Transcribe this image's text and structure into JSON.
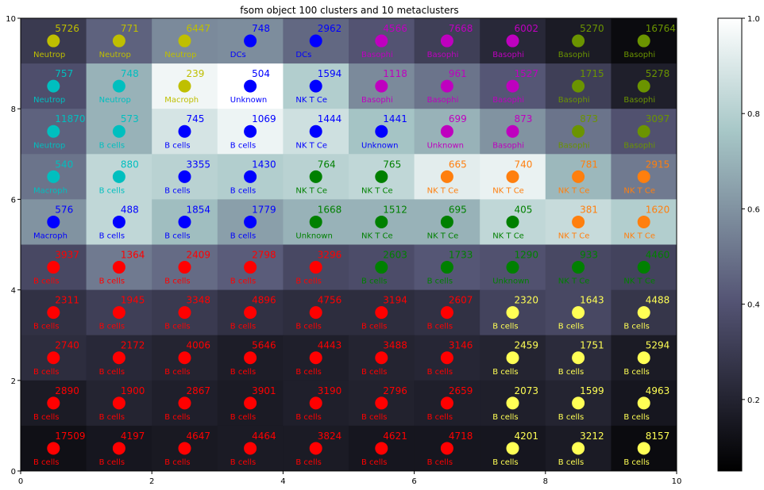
{
  "chart_data": {
    "type": "heatmap",
    "title": "fsom object 100 clusters and 10 metaclusters",
    "xlim": [
      0,
      10
    ],
    "ylim": [
      0,
      10
    ],
    "xticks": [
      "0",
      "2",
      "4",
      "6",
      "8",
      "10"
    ],
    "yticks": [
      "0",
      "2",
      "4",
      "6",
      "8",
      "10"
    ],
    "colorbar": {
      "range": [
        0.05,
        1.0
      ],
      "ticks": [
        "0.2",
        "0.4",
        "0.6",
        "0.8",
        "1.0"
      ],
      "colormap": "bone"
    },
    "metacluster_colors": {
      "red": "#ff0000",
      "green": "#008000",
      "orange": "#ff7f0e",
      "blue": "#0000ff",
      "magenta": "#bf00bf",
      "cyan": "#00bfbf",
      "olive": "#6b9400",
      "yellow": "#bfbf00",
      "lightyellow": "#ffff55"
    },
    "cells": [
      [
        {
          "count": "5726",
          "label": "Neutrop",
          "color": "yellow",
          "level": 0.26
        },
        {
          "count": "771",
          "label": "Neutrop",
          "color": "yellow",
          "level": 0.42
        },
        {
          "count": "6447",
          "label": "Neutrop",
          "color": "yellow",
          "level": 0.55
        },
        {
          "count": "748",
          "label": "DCs",
          "color": "blue",
          "level": 0.56
        },
        {
          "count": "2962",
          "label": "DCs",
          "color": "blue",
          "level": 0.44
        },
        {
          "count": "4566",
          "label": "Basophi",
          "color": "magenta",
          "level": 0.37
        },
        {
          "count": "7668",
          "label": "Basophi",
          "color": "magenta",
          "level": 0.28
        },
        {
          "count": "6002",
          "label": "Basophi",
          "color": "magenta",
          "level": 0.18
        },
        {
          "count": "5270",
          "label": "Basophi",
          "color": "olive",
          "level": 0.12
        },
        {
          "count": "16764",
          "label": "Basophi",
          "color": "olive",
          "level": 0.05
        }
      ],
      [
        {
          "count": "757",
          "label": "Neutrop",
          "color": "cyan",
          "level": 0.35
        },
        {
          "count": "748",
          "label": "Neutrop",
          "color": "cyan",
          "level": 0.68
        },
        {
          "count": "239",
          "label": "Macroph",
          "color": "yellow",
          "level": 0.96
        },
        {
          "count": "504",
          "label": "Unknown",
          "color": "blue",
          "level": 1.0
        },
        {
          "count": "1594",
          "label": "NK T Ce",
          "color": "blue",
          "level": 0.78
        },
        {
          "count": "1118",
          "label": "Basophi",
          "color": "magenta",
          "level": 0.55
        },
        {
          "count": "961",
          "label": "Basophi",
          "color": "magenta",
          "level": 0.48
        },
        {
          "count": "1527",
          "label": "Basophi",
          "color": "magenta",
          "level": 0.38
        },
        {
          "count": "1715",
          "label": "Basophi",
          "color": "olive",
          "level": 0.28
        },
        {
          "count": "5278",
          "label": "Basophi",
          "color": "olive",
          "level": 0.14
        }
      ],
      [
        {
          "count": "11870",
          "label": "Neutrop",
          "color": "cyan",
          "level": 0.42
        },
        {
          "count": "573",
          "label": "B cells",
          "color": "cyan",
          "level": 0.68
        },
        {
          "count": "745",
          "label": "B cells",
          "color": "blue",
          "level": 0.88
        },
        {
          "count": "1069",
          "label": "B cells",
          "color": "blue",
          "level": 0.95
        },
        {
          "count": "1444",
          "label": "NK T Ce",
          "color": "blue",
          "level": 0.86
        },
        {
          "count": "1441",
          "label": "Unknown",
          "color": "blue",
          "level": 0.74
        },
        {
          "count": "699",
          "label": "Unknown",
          "color": "magenta",
          "level": 0.68
        },
        {
          "count": "873",
          "label": "Basophi",
          "color": "magenta",
          "level": 0.58
        },
        {
          "count": "873",
          "label": "Basophi",
          "color": "olive",
          "level": 0.48
        },
        {
          "count": "3097",
          "label": "Basophi",
          "color": "olive",
          "level": 0.36
        }
      ],
      [
        {
          "count": "540",
          "label": "Macroph",
          "color": "cyan",
          "level": 0.48
        },
        {
          "count": "880",
          "label": "B cells",
          "color": "cyan",
          "level": 0.82
        },
        {
          "count": "3355",
          "label": "B cells",
          "color": "blue",
          "level": 0.8
        },
        {
          "count": "1430",
          "label": "B cells",
          "color": "blue",
          "level": 0.78
        },
        {
          "count": "764",
          "label": "NK T Ce",
          "color": "green",
          "level": 0.8
        },
        {
          "count": "765",
          "label": "NK T Ce",
          "color": "green",
          "level": 0.82
        },
        {
          "count": "665",
          "label": "NK T Ce",
          "color": "orange",
          "level": 0.92
        },
        {
          "count": "740",
          "label": "NK T Ce",
          "color": "orange",
          "level": 0.94
        },
        {
          "count": "781",
          "label": "NK T Ce",
          "color": "orange",
          "level": 0.7
        },
        {
          "count": "2915",
          "label": "NK T Ce",
          "color": "orange",
          "level": 0.5
        }
      ],
      [
        {
          "count": "576",
          "label": "Macroph",
          "color": "blue",
          "level": 0.58
        },
        {
          "count": "488",
          "label": "B cells",
          "color": "blue",
          "level": 0.82
        },
        {
          "count": "1854",
          "label": "B cells",
          "color": "blue",
          "level": 0.72
        },
        {
          "count": "1779",
          "label": "B cells",
          "color": "blue",
          "level": 0.62
        },
        {
          "count": "1668",
          "label": "Unknown",
          "color": "green",
          "level": 0.68
        },
        {
          "count": "1512",
          "label": "NK T Ce",
          "color": "green",
          "level": 0.68
        },
        {
          "count": "695",
          "label": "NK T Ce",
          "color": "green",
          "level": 0.68
        },
        {
          "count": "405",
          "label": "NK T Ce",
          "color": "green",
          "level": 0.82
        },
        {
          "count": "381",
          "label": "NK T Ce",
          "color": "orange",
          "level": 0.84
        },
        {
          "count": "1620",
          "label": "NK T Ce",
          "color": "orange",
          "level": 0.78
        }
      ],
      [
        {
          "count": "3937",
          "label": "B cells",
          "color": "red",
          "level": 0.32
        },
        {
          "count": "1364",
          "label": "B cells",
          "color": "red",
          "level": 0.5
        },
        {
          "count": "2409",
          "label": "B cells",
          "color": "red",
          "level": 0.45
        },
        {
          "count": "2798",
          "label": "B cells",
          "color": "red",
          "level": 0.4
        },
        {
          "count": "3296",
          "label": "B cells",
          "color": "red",
          "level": 0.32
        },
        {
          "count": "2603",
          "label": "B cells",
          "color": "green",
          "level": 0.34
        },
        {
          "count": "1733",
          "label": "B cells",
          "color": "green",
          "level": 0.38
        },
        {
          "count": "1290",
          "label": "Unknown",
          "color": "green",
          "level": 0.36
        },
        {
          "count": "933",
          "label": "NK T Ce",
          "color": "green",
          "level": 0.32
        },
        {
          "count": "4460",
          "label": "NK T Ce",
          "color": "green",
          "level": 0.3
        }
      ],
      [
        {
          "count": "2311",
          "label": "B cells",
          "color": "red",
          "level": 0.22
        },
        {
          "count": "1945",
          "label": "B cells",
          "color": "red",
          "level": 0.28
        },
        {
          "count": "3348",
          "label": "B cells",
          "color": "red",
          "level": 0.26
        },
        {
          "count": "4896",
          "label": "B cells",
          "color": "red",
          "level": 0.22
        },
        {
          "count": "4756",
          "label": "B cells",
          "color": "red",
          "level": 0.2
        },
        {
          "count": "3194",
          "label": "B cells",
          "color": "red",
          "level": 0.2
        },
        {
          "count": "2607",
          "label": "B cells",
          "color": "red",
          "level": 0.22
        },
        {
          "count": "2320",
          "label": "B cells",
          "color": "lightyellow",
          "level": 0.3
        },
        {
          "count": "1643",
          "label": "B cells",
          "color": "lightyellow",
          "level": 0.32
        },
        {
          "count": "4488",
          "label": "B cells",
          "color": "lightyellow",
          "level": 0.24
        }
      ],
      [
        {
          "count": "2740",
          "label": "B cells",
          "color": "red",
          "level": 0.2
        },
        {
          "count": "2172",
          "label": "B cells",
          "color": "red",
          "level": 0.18
        },
        {
          "count": "4006",
          "label": "B cells",
          "color": "red",
          "level": 0.16
        },
        {
          "count": "5646",
          "label": "B cells",
          "color": "red",
          "level": 0.13
        },
        {
          "count": "4443",
          "label": "B cells",
          "color": "red",
          "level": 0.14
        },
        {
          "count": "3488",
          "label": "B cells",
          "color": "red",
          "level": 0.16
        },
        {
          "count": "3146",
          "label": "B cells",
          "color": "red",
          "level": 0.17
        },
        {
          "count": "2459",
          "label": "B cells",
          "color": "lightyellow",
          "level": 0.16
        },
        {
          "count": "1751",
          "label": "B cells",
          "color": "lightyellow",
          "level": 0.19
        },
        {
          "count": "5294",
          "label": "B cells",
          "color": "lightyellow",
          "level": 0.12
        }
      ],
      [
        {
          "count": "2890",
          "label": "B cells",
          "color": "red",
          "level": 0.12
        },
        {
          "count": "1900",
          "label": "B cells",
          "color": "red",
          "level": 0.16
        },
        {
          "count": "2867",
          "label": "B cells",
          "color": "red",
          "level": 0.14
        },
        {
          "count": "3901",
          "label": "B cells",
          "color": "red",
          "level": 0.12
        },
        {
          "count": "3190",
          "label": "B cells",
          "color": "red",
          "level": 0.14
        },
        {
          "count": "2796",
          "label": "B cells",
          "color": "red",
          "level": 0.15
        },
        {
          "count": "2659",
          "label": "B cells",
          "color": "red",
          "level": 0.14
        },
        {
          "count": "2073",
          "label": "B cells",
          "color": "lightyellow",
          "level": 0.14
        },
        {
          "count": "1599",
          "label": "B cells",
          "color": "lightyellow",
          "level": 0.16
        },
        {
          "count": "4963",
          "label": "B cells",
          "color": "lightyellow",
          "level": 0.1
        }
      ],
      [
        {
          "count": "17509",
          "label": "B cells",
          "color": "red",
          "level": 0.07
        },
        {
          "count": "4197",
          "label": "B cells",
          "color": "red",
          "level": 0.1
        },
        {
          "count": "4647",
          "label": "B cells",
          "color": "red",
          "level": 0.11
        },
        {
          "count": "4464",
          "label": "B cells",
          "color": "red",
          "level": 0.12
        },
        {
          "count": "3824",
          "label": "B cells",
          "color": "red",
          "level": 0.12
        },
        {
          "count": "4621",
          "label": "B cells",
          "color": "red",
          "level": 0.1
        },
        {
          "count": "4718",
          "label": "B cells",
          "color": "red",
          "level": 0.1
        },
        {
          "count": "4201",
          "label": "B cells",
          "color": "lightyellow",
          "level": 0.1
        },
        {
          "count": "3212",
          "label": "B cells",
          "color": "lightyellow",
          "level": 0.12
        },
        {
          "count": "8157",
          "label": "B cells",
          "color": "lightyellow",
          "level": 0.05
        }
      ]
    ]
  }
}
